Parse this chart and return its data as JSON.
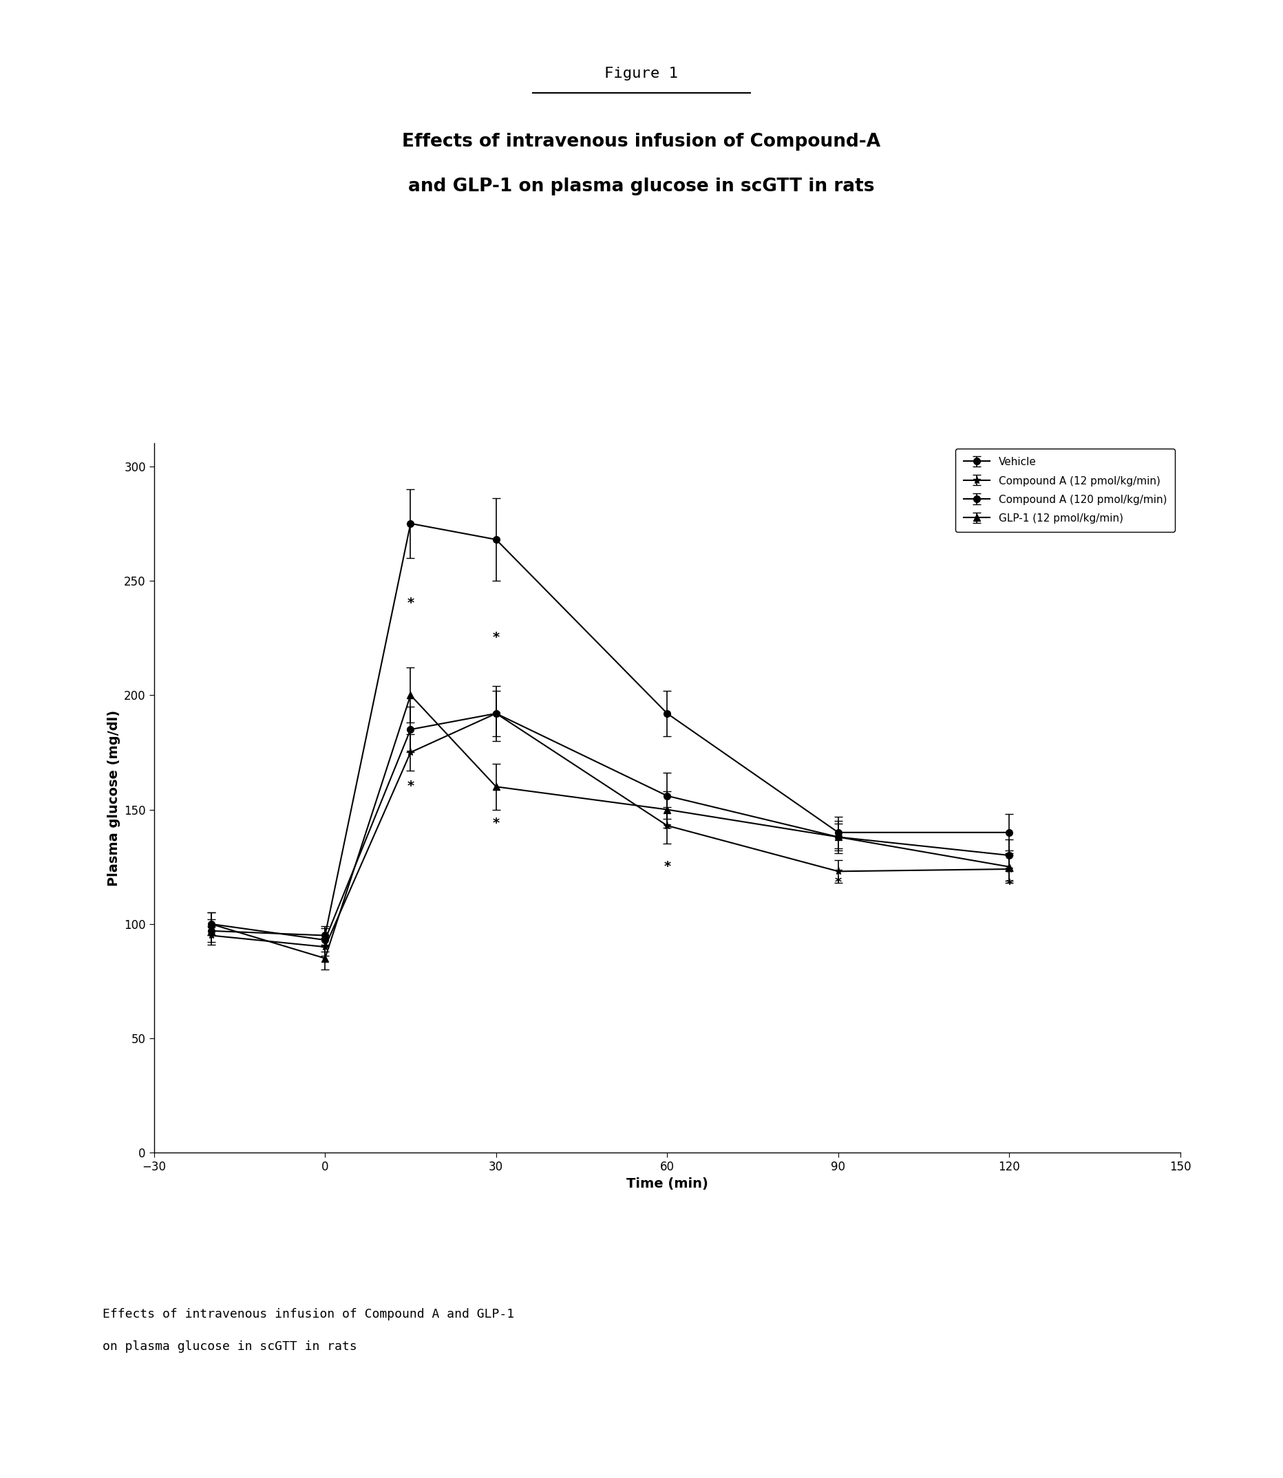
{
  "title_top": "Figure 1",
  "title_main_line1": "Effects of intravenous infusion of Compound-A",
  "title_main_line2": "and GLP-1 on plasma glucose in scGTT in rats",
  "xlabel": "Time (min)",
  "ylabel": "Plasma glucose (mg/dl)",
  "caption_line1": "Effects of intravenous infusion of Compound A and GLP-1",
  "caption_line2": "on plasma glucose in scGTT in rats",
  "xlim": [
    -30,
    150
  ],
  "ylim": [
    0,
    310
  ],
  "xticks": [
    -30,
    0,
    30,
    60,
    90,
    120,
    150
  ],
  "yticks": [
    0,
    50,
    100,
    150,
    200,
    250,
    300
  ],
  "time_points": [
    -20,
    0,
    15,
    30,
    60,
    90,
    120
  ],
  "vehicle": {
    "y": [
      97,
      95,
      275,
      268,
      192,
      140,
      140
    ],
    "yerr": [
      5,
      4,
      15,
      18,
      10,
      7,
      8
    ],
    "label": "Vehicle",
    "marker": "o",
    "color": "black"
  },
  "compound_a_12": {
    "y": [
      95,
      90,
      175,
      192,
      143,
      123,
      124
    ],
    "yerr": [
      4,
      4,
      8,
      10,
      8,
      5,
      6
    ],
    "label": "Compound A (12 pmol/kg/min)",
    "marker": "*",
    "color": "black"
  },
  "compound_a_120": {
    "y": [
      100,
      93,
      185,
      192,
      156,
      138,
      130
    ],
    "yerr": [
      5,
      5,
      10,
      12,
      10,
      7,
      7
    ],
    "label": "Compound A (120 pmol/kg/min)",
    "marker": "o",
    "color": "black"
  },
  "glp1_12": {
    "y": [
      100,
      85,
      200,
      160,
      150,
      138,
      125
    ],
    "yerr": [
      5,
      5,
      12,
      10,
      8,
      6,
      6
    ],
    "label": "GLP-1 (12 pmol/kg/min)",
    "marker": "^",
    "color": "black"
  },
  "background_color": "#ffffff",
  "underline_y": 0.937,
  "underline_x": [
    0.415,
    0.585
  ]
}
